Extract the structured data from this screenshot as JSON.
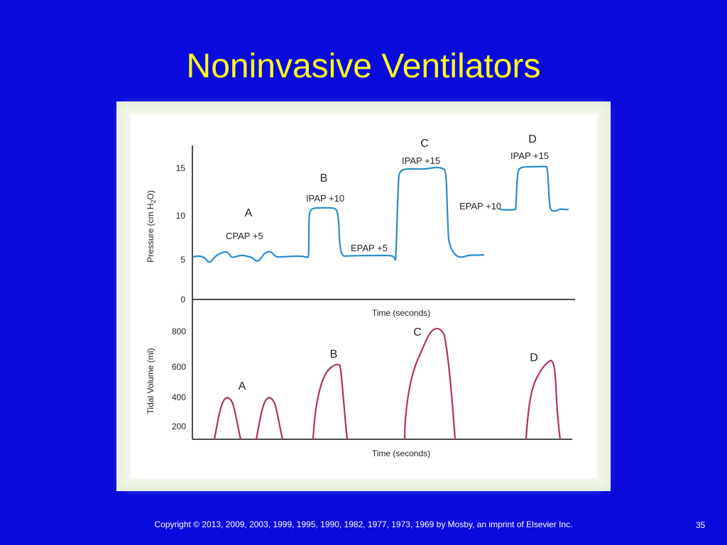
{
  "slide": {
    "title": "Noninvasive Ventilators",
    "copyright": "Copyright © 2013, 2009, 2003, 1999, 1995, 1990, 1982, 1977, 1973, 1969 by Mosby, an imprint of Elsevier Inc.",
    "page_number": "35"
  },
  "colors": {
    "background": "#0a0adc",
    "title": "#ffff1a",
    "pressure_trace": "#2a8cc8",
    "volume_trace": "#b4305a"
  },
  "figure": {
    "pressure_panel": {
      "ylabel_pre": "Pressure (cm H",
      "ylabel_sub": "2",
      "ylabel_post": "O)",
      "xlabel": "Time (seconds)",
      "ticks": [
        "15",
        "10",
        "5",
        "0"
      ],
      "labels": {
        "a": "A",
        "a_mode": "CPAP  +5",
        "b": "B",
        "b_ipap": "IPAP +10",
        "b_epap": "EPAP +5",
        "c": "C",
        "c_ipap": "IPAP +15",
        "c_epap": "EPAP +10",
        "d": "D",
        "d_ipap": "IPAP +15"
      }
    },
    "volume_panel": {
      "ylabel": "Tidal Volume (ml)",
      "xlabel": "Time (seconds)",
      "ticks": [
        "800",
        "600",
        "400",
        "200"
      ],
      "labels": {
        "a": "A",
        "b": "B",
        "c": "C",
        "d": "D"
      }
    }
  }
}
